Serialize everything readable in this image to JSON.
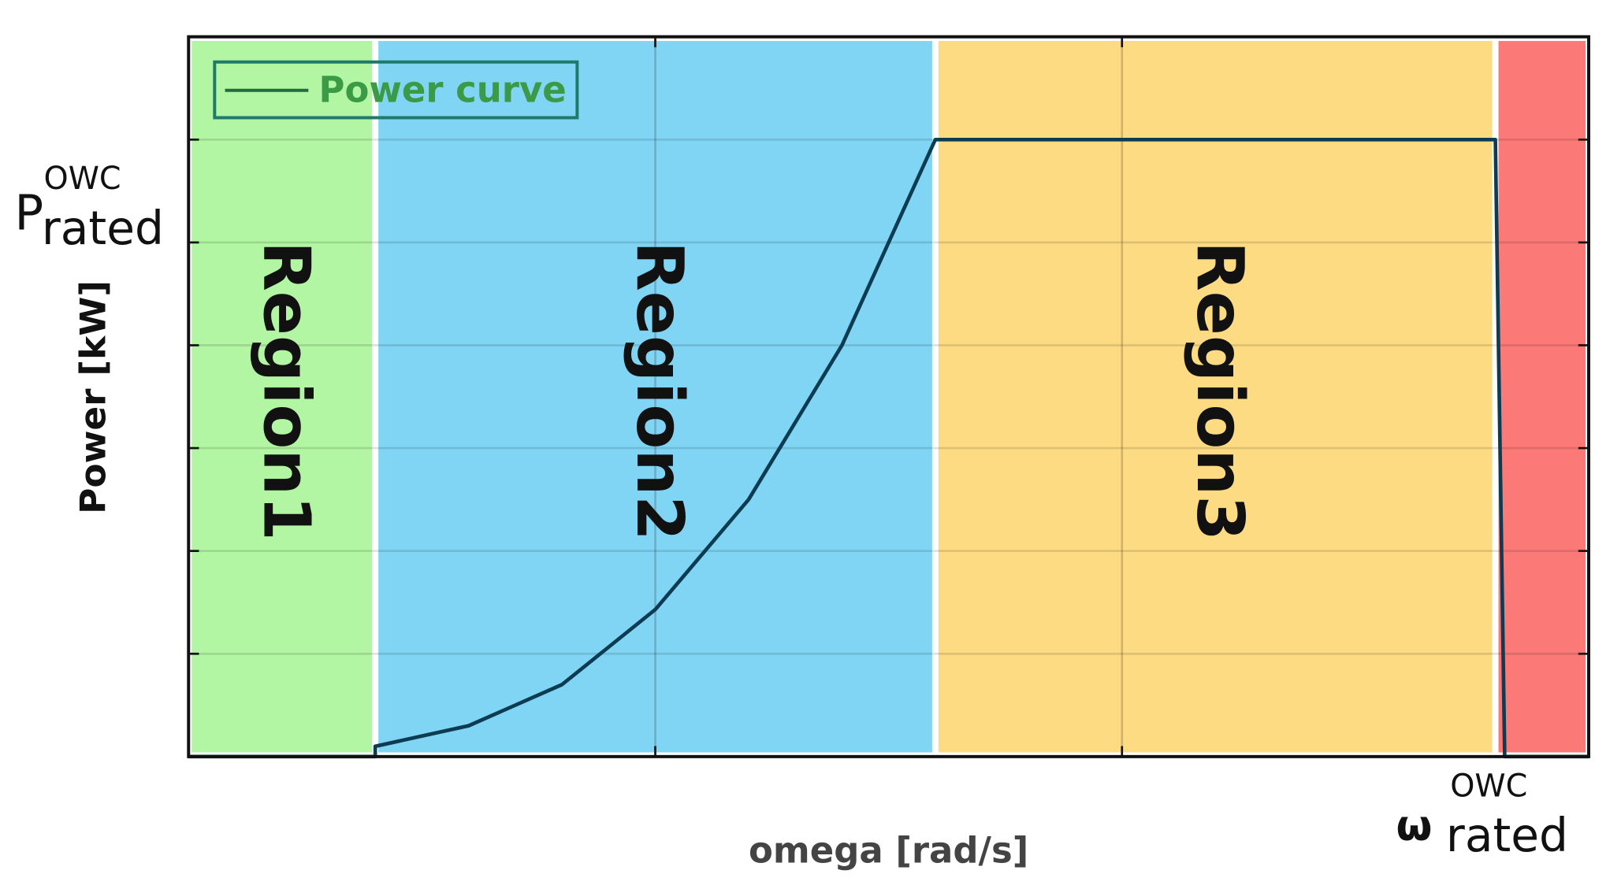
{
  "chart_data": {
    "type": "line",
    "x_label": "omega [rad/s]",
    "y_label": "Power [kW]",
    "xlim": [
      0,
      3
    ],
    "ylim": [
      0,
      7
    ],
    "grid": true,
    "legend": "upper left",
    "regions": [
      {
        "label": "Region1",
        "from": 0,
        "to": 0.4,
        "color": "#b2f5a2"
      },
      {
        "label": "Region2",
        "from": 0.4,
        "to": 1.6,
        "color": "#80d5f4"
      },
      {
        "label": "Region3",
        "from": 1.6,
        "to": 2.8,
        "color": "#fcdb82"
      },
      {
        "from": 2.8,
        "to": 3,
        "color": "#fb7a78"
      }
    ],
    "x": [
      0,
      0.4,
      0.4,
      0.6,
      0.8,
      1.0,
      1.2,
      1.4,
      1.6,
      2.8,
      2.82,
      3
    ],
    "series": [
      {
        "name": "Power curve",
        "color": "#0d3c52",
        "values": [
          0,
          0,
          0.1,
          0.3,
          0.7,
          1.43,
          2.5,
          4.0,
          6,
          6,
          0,
          0
        ]
      }
    ],
    "annotations": [
      {
        "text": "P",
        "sub": "rated",
        "sup": "OWC"
      },
      {
        "text": "ω",
        "sub": "rated",
        "sup": "OWC"
      }
    ]
  }
}
